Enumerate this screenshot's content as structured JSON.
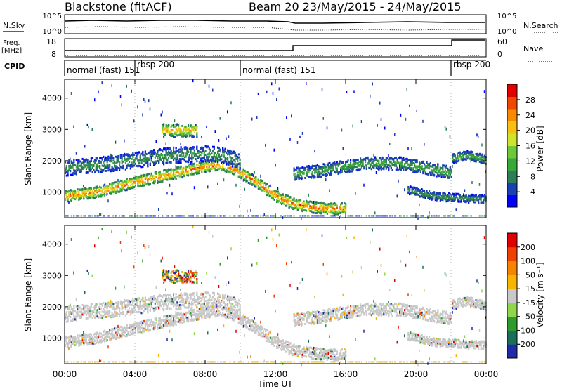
{
  "header": {
    "station": "Blackstone (fitACF)",
    "beam_dates": "Beam 20  23/May/2015 - 24/May/2015"
  },
  "left_labels": {
    "nsky": "N.Sky",
    "freq": "Freq.",
    "freq_unit": "[MHz]",
    "cpid": "CPID"
  },
  "right_labels": {
    "nsearch": "N.Search",
    "nave": "Nave"
  },
  "noise_axis": {
    "left_ticks": [
      "10^5",
      "10^0"
    ],
    "right_ticks": [
      "10^5",
      "10^0"
    ]
  },
  "freq_axis": {
    "left_ticks": [
      "18",
      "8"
    ],
    "right_ticks": [
      "60",
      "0"
    ]
  },
  "cpid_segments": [
    {
      "label": "normal (fast) 151",
      "start_h": 0
    },
    {
      "label": "rbsp 200",
      "start_h": 4
    },
    {
      "label": "normal (fast) 151",
      "start_h": 10
    },
    {
      "label": "rbsp 200",
      "start_h": 22
    }
  ],
  "x_axis": {
    "label": "Time UT",
    "range_h": [
      0,
      24
    ],
    "ticks": [
      "00:00",
      "04:00",
      "08:00",
      "12:00",
      "16:00",
      "20:00",
      "00:00"
    ]
  },
  "power_panel": {
    "ylabel": "Slant Range [km]",
    "yrange_km": [
      180,
      4600
    ],
    "yticks": [
      "1000",
      "2000",
      "3000",
      "4000"
    ],
    "colorbar_label": "Power [dB]",
    "colorbar_ticks": [
      "28",
      "24",
      "20",
      "16",
      "12",
      "8",
      "4"
    ],
    "colors": [
      "#0000ff",
      "#1b3fb5",
      "#2e7d56",
      "#38a83b",
      "#6cc93a",
      "#cfe22c",
      "#f8c010",
      "#f88a00",
      "#f04800",
      "#e00000"
    ]
  },
  "velocity_panel": {
    "ylabel": "Slant Range [km]",
    "yrange_km": [
      180,
      4600
    ],
    "yticks": [
      "1000",
      "2000",
      "3000",
      "4000"
    ],
    "colorbar_label": "Velocity [m s⁻¹]",
    "colorbar_ticks": [
      "200",
      "100",
      "50",
      "15",
      "-15",
      "-50",
      "-100",
      "-200"
    ],
    "colors": [
      "#1e2aa8",
      "#1b6f5a",
      "#2e9b2e",
      "#8fd64a",
      "#c8c8c8",
      "#f7b500",
      "#f68400",
      "#ef4200",
      "#e00000"
    ]
  },
  "chart_data": {
    "type": "heatmap",
    "title": "Blackstone (fitACF)  Beam 20  23/May/2015 - 24/May/2015",
    "xlabel": "Time UT",
    "ylabel": "Slant Range [km]",
    "xlim_hours": [
      0,
      24
    ],
    "ylim_km": [
      180,
      4600
    ],
    "power_scale_db": [
      0,
      32
    ],
    "velocity_scale_ms": [
      -250,
      250
    ],
    "scatter_bands": [
      {
        "name": "lower band",
        "points": [
          [
            0,
            900
          ],
          [
            2,
            1050
          ],
          [
            4,
            1350
          ],
          [
            6,
            1600
          ],
          [
            8,
            1850
          ],
          [
            9,
            1900
          ],
          [
            10,
            1650
          ],
          [
            11,
            1300
          ],
          [
            12,
            900
          ],
          [
            13,
            650
          ],
          [
            14,
            550
          ],
          [
            15,
            500
          ],
          [
            16,
            500
          ]
        ],
        "half_width_km": 180,
        "peak_power_db": 30
      },
      {
        "name": "upper band",
        "points": [
          [
            0,
            1800
          ],
          [
            2,
            1900
          ],
          [
            4,
            2050
          ],
          [
            6,
            2200
          ],
          [
            8,
            2250
          ],
          [
            9,
            2200
          ],
          [
            10,
            2000
          ]
        ],
        "half_width_km": 250,
        "peak_power_db": 12
      },
      {
        "name": "high-range patch",
        "points": [
          [
            5.5,
            3000
          ],
          [
            6.5,
            3000
          ],
          [
            7.5,
            3000
          ]
        ],
        "half_width_km": 200,
        "peak_power_db": 26
      },
      {
        "name": "afternoon band",
        "points": [
          [
            13,
            1600
          ],
          [
            15,
            1750
          ],
          [
            17,
            1950
          ],
          [
            19,
            1950
          ],
          [
            21,
            1750
          ],
          [
            22,
            1650
          ]
        ],
        "half_width_km": 200,
        "peak_power_db": 14
      },
      {
        "name": "late band",
        "points": [
          [
            22,
            2100
          ],
          [
            23,
            2200
          ],
          [
            24,
            2050
          ]
        ],
        "half_width_km": 150,
        "peak_power_db": 14
      },
      {
        "name": "evening lower band",
        "points": [
          [
            19.5,
            1100
          ],
          [
            21,
            900
          ],
          [
            22,
            850
          ],
          [
            24,
            800
          ]
        ],
        "half_width_km": 130,
        "peak_power_db": 12
      }
    ],
    "cpid_change_hours": [
      4,
      10,
      22
    ]
  }
}
